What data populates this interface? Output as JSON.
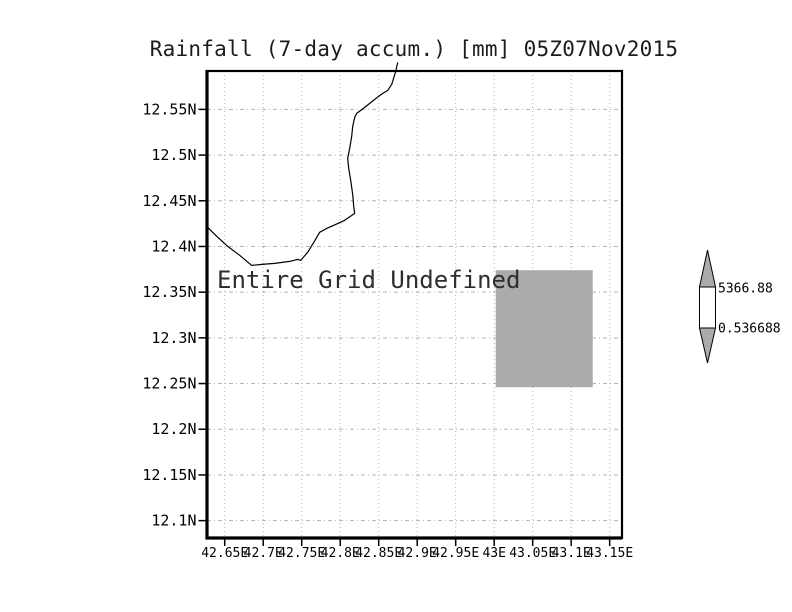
{
  "title": "Rainfall (7-day accum.) [mm] 05Z07Nov2015",
  "colors": {
    "background": "#ffffff",
    "frame": "#000000",
    "grid": "#b3b3b3",
    "text": "#000000",
    "undefined_fill": "#ababab"
  },
  "chart_data": {
    "type": "map",
    "title": "Rainfall (7-day accum.) [mm] 05Z07Nov2015",
    "annotation": "Entire Grid Undefined",
    "grid": true,
    "x_axis": {
      "ticks": [
        42.65,
        42.7,
        42.75,
        42.8,
        42.85,
        42.9,
        42.95,
        43.0,
        43.05,
        43.1,
        43.15
      ],
      "tick_labels": [
        "42.65E",
        "42.7E",
        "42.75E",
        "42.8E",
        "42.85E",
        "42.9E",
        "42.95E",
        "43E",
        "43.05E",
        "43.1E",
        "43.15E"
      ],
      "range": [
        42.627,
        43.166
      ]
    },
    "y_axis": {
      "ticks": [
        12.1,
        12.15,
        12.2,
        12.25,
        12.3,
        12.35,
        12.4,
        12.45,
        12.5,
        12.55
      ],
      "tick_labels": [
        "12.1N",
        "12.15N",
        "12.2N",
        "12.25N",
        "12.3N",
        "12.35N",
        "12.4N",
        "12.45N",
        "12.5N",
        "12.55N"
      ],
      "range": [
        12.081,
        12.592
      ]
    },
    "coastline": [
      [
        42.8747,
        12.6014
      ],
      [
        42.8721,
        12.5916
      ],
      [
        42.8669,
        12.5773
      ],
      [
        42.8617,
        12.5708
      ],
      [
        42.8552,
        12.5675
      ],
      [
        42.8448,
        12.5609
      ],
      [
        42.8318,
        12.5522
      ],
      [
        42.8214,
        12.5456
      ],
      [
        42.8188,
        12.5412
      ],
      [
        42.8162,
        12.5314
      ],
      [
        42.8149,
        12.5205
      ],
      [
        42.8123,
        12.5073
      ],
      [
        42.8097,
        12.4964
      ],
      [
        42.811,
        12.4855
      ],
      [
        42.8136,
        12.4723
      ],
      [
        42.8162,
        12.457
      ],
      [
        42.8175,
        12.4439
      ],
      [
        42.8188,
        12.4362
      ],
      [
        42.8058,
        12.4286
      ],
      [
        42.7942,
        12.4242
      ],
      [
        42.7825,
        12.4198
      ],
      [
        42.7734,
        12.4155
      ],
      [
        42.7656,
        12.4045
      ],
      [
        42.7578,
        12.3936
      ],
      [
        42.7487,
        12.3848
      ],
      [
        42.7448,
        12.3859
      ],
      [
        42.7344,
        12.3837
      ],
      [
        42.7149,
        12.3815
      ],
      [
        42.6981,
        12.3804
      ],
      [
        42.6851,
        12.3793
      ],
      [
        42.6695,
        12.3903
      ],
      [
        42.6539,
        12.4001
      ],
      [
        42.6383,
        12.4122
      ],
      [
        42.6266,
        12.422
      ]
    ],
    "undefined_region": {
      "lon_min": 43.002,
      "lon_max": 43.128,
      "lat_min": 12.246,
      "lat_max": 12.374,
      "color": "#ababab"
    },
    "colorbar": {
      "max_label": "5366.88",
      "min_label": "0.536688",
      "max_value": 5366.88,
      "min_value": 0.536688,
      "fill": "#ababab"
    }
  }
}
